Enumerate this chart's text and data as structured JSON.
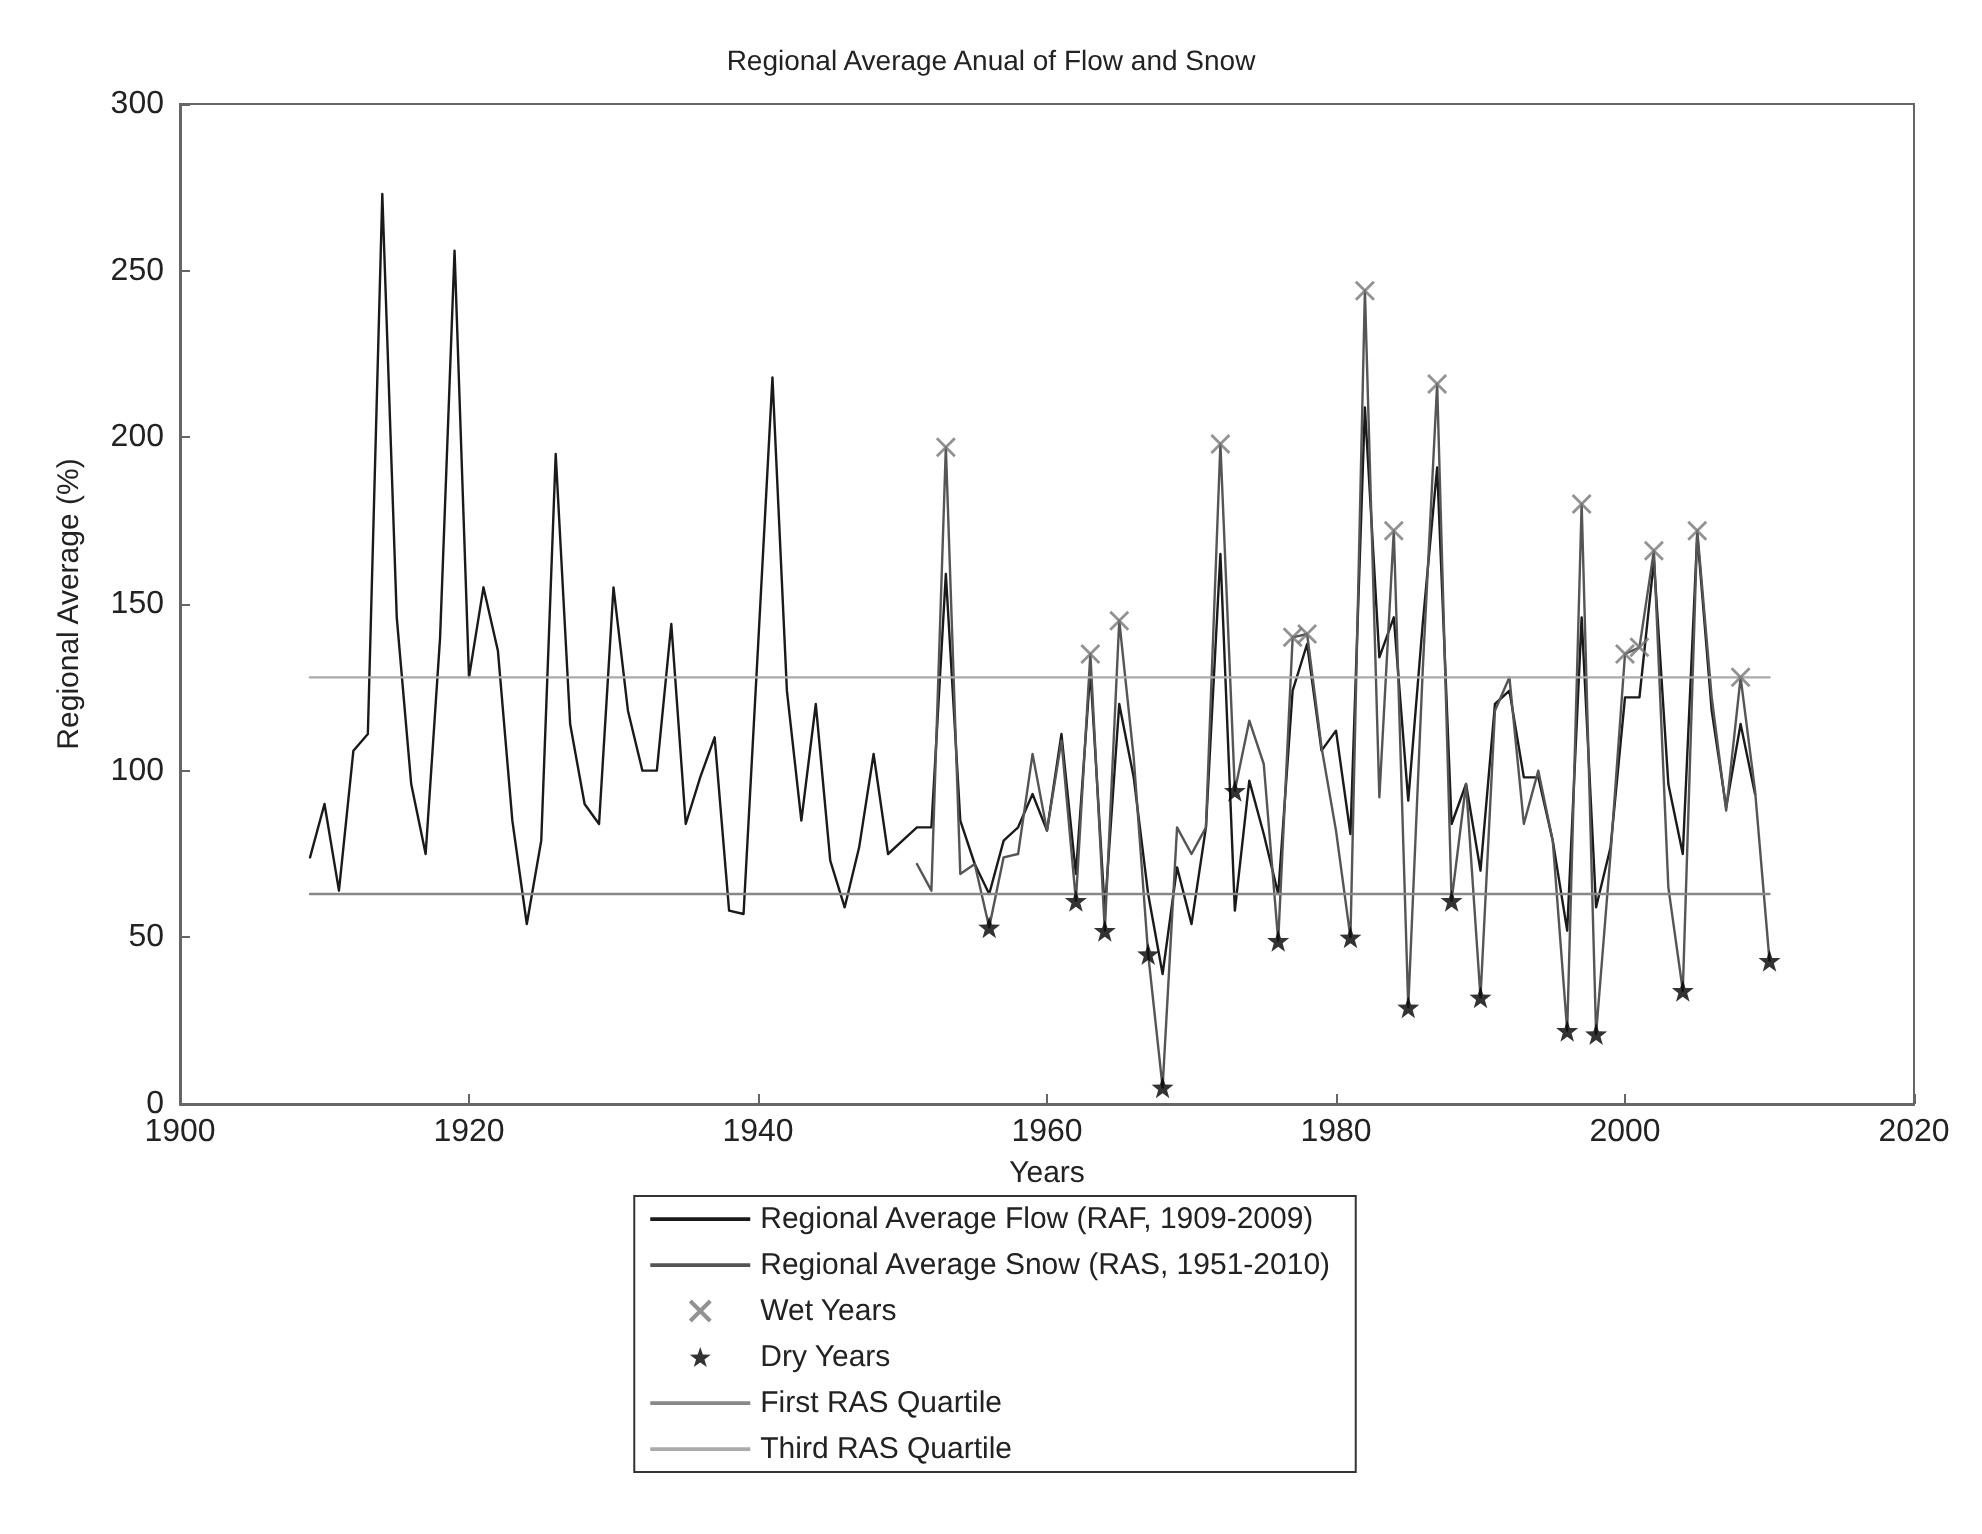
{
  "chart_data": {
    "type": "line",
    "title": "Regional Average Anual of Flow and Snow",
    "xlabel": "Years",
    "ylabel": "Regional Average (%)",
    "xlim": [
      1900,
      2020
    ],
    "xticks": [
      1900,
      1920,
      1940,
      1960,
      1980,
      2000,
      2020
    ],
    "ylim": [
      0,
      300
    ],
    "yticks": [
      0,
      50,
      100,
      150,
      200,
      250,
      300
    ],
    "grid": false,
    "legend": "bottom",
    "line_style": "solid",
    "series": [
      {
        "name": "Regional Average Flow (RAF, 1909-2009)",
        "color": "#1a1a1a",
        "x": [
          1909,
          1910,
          1911,
          1912,
          1913,
          1914,
          1915,
          1916,
          1917,
          1918,
          1919,
          1920,
          1921,
          1922,
          1923,
          1924,
          1925,
          1926,
          1927,
          1928,
          1929,
          1930,
          1931,
          1932,
          1933,
          1934,
          1935,
          1936,
          1937,
          1938,
          1939,
          1940,
          1941,
          1942,
          1943,
          1944,
          1945,
          1946,
          1947,
          1948,
          1949,
          1950,
          1951,
          1952,
          1953,
          1954,
          1955,
          1956,
          1957,
          1958,
          1959,
          1960,
          1961,
          1962,
          1963,
          1964,
          1965,
          1966,
          1967,
          1968,
          1969,
          1970,
          1971,
          1972,
          1973,
          1974,
          1975,
          1976,
          1977,
          1978,
          1979,
          1980,
          1981,
          1982,
          1983,
          1984,
          1985,
          1986,
          1987,
          1988,
          1989,
          1990,
          1991,
          1992,
          1993,
          1994,
          1995,
          1996,
          1997,
          1998,
          1999,
          2000,
          2001,
          2002,
          2003,
          2004,
          2005,
          2006,
          2007,
          2008,
          2009
        ],
        "values": [
          74,
          90,
          64,
          106,
          111,
          273,
          146,
          96,
          75,
          140,
          256,
          128,
          155,
          136,
          85,
          54,
          79,
          195,
          114,
          90,
          84,
          155,
          118,
          100,
          100,
          144,
          84,
          98,
          110,
          58,
          57,
          137,
          218,
          124,
          85,
          120,
          73,
          59,
          77,
          105,
          75,
          79,
          83,
          83,
          159,
          85,
          72,
          63,
          79,
          83,
          93,
          82,
          111,
          69,
          130,
          58,
          120,
          98,
          63,
          39,
          71,
          54,
          83,
          165,
          58,
          97,
          81,
          63,
          124,
          138,
          106,
          112,
          81,
          209,
          134,
          146,
          91,
          144,
          191,
          84,
          96,
          70,
          120,
          124,
          98,
          98,
          79,
          52,
          146,
          59,
          77,
          122,
          122,
          163,
          96,
          75,
          171,
          118,
          89,
          114,
          93
        ]
      },
      {
        "name": "Regional Average Snow (RAS, 1951-2010)",
        "color": "#555555",
        "x": [
          1951,
          1952,
          1953,
          1954,
          1955,
          1956,
          1957,
          1958,
          1959,
          1960,
          1961,
          1962,
          1963,
          1964,
          1965,
          1966,
          1967,
          1968,
          1969,
          1970,
          1971,
          1972,
          1973,
          1974,
          1975,
          1976,
          1977,
          1978,
          1979,
          1980,
          1981,
          1982,
          1983,
          1984,
          1985,
          1986,
          1987,
          1988,
          1989,
          1990,
          1991,
          1992,
          1993,
          1994,
          1995,
          1996,
          1997,
          1998,
          1999,
          2000,
          2001,
          2002,
          2003,
          2004,
          2005,
          2006,
          2007,
          2008,
          2009,
          2010
        ],
        "values": [
          72,
          64,
          197,
          69,
          72,
          53,
          74,
          75,
          105,
          82,
          109,
          61,
          135,
          52,
          145,
          104,
          45,
          5,
          83,
          75,
          83,
          198,
          94,
          115,
          102,
          49,
          140,
          141,
          107,
          82,
          50,
          244,
          92,
          172,
          29,
          130,
          216,
          61,
          96,
          32,
          118,
          128,
          84,
          100,
          79,
          22,
          180,
          21,
          75,
          135,
          137,
          166,
          65,
          34,
          172,
          122,
          88,
          128,
          94,
          43
        ]
      },
      {
        "name": "Wet Years",
        "type": "scatter",
        "marker": "cross",
        "color": "#777777",
        "x": [
          1953,
          1963,
          1965,
          1972,
          1977,
          1978,
          1982,
          1984,
          1987,
          1997,
          2000,
          2001,
          2002,
          2005,
          2008
        ],
        "values": [
          197,
          135,
          145,
          198,
          140,
          141,
          244,
          172,
          216,
          180,
          135,
          137,
          166,
          172,
          128
        ]
      },
      {
        "name": "Dry Years",
        "type": "scatter",
        "marker": "star",
        "color": "#000000",
        "x": [
          1956,
          1962,
          1964,
          1967,
          1968,
          1973,
          1976,
          1981,
          1985,
          1988,
          1990,
          1996,
          1998,
          2004,
          2010
        ],
        "values": [
          53,
          61,
          52,
          45,
          5,
          94,
          49,
          50,
          29,
          61,
          32,
          22,
          21,
          34,
          43
        ]
      },
      {
        "name": "First RAS Quartile",
        "color": "#888888",
        "x": [
          1909,
          2010
        ],
        "values": [
          63,
          63
        ]
      },
      {
        "name": "Third RAS Quartile",
        "color": "#aaaaaa",
        "x": [
          1909,
          2010
        ],
        "values": [
          128,
          128
        ]
      }
    ]
  }
}
